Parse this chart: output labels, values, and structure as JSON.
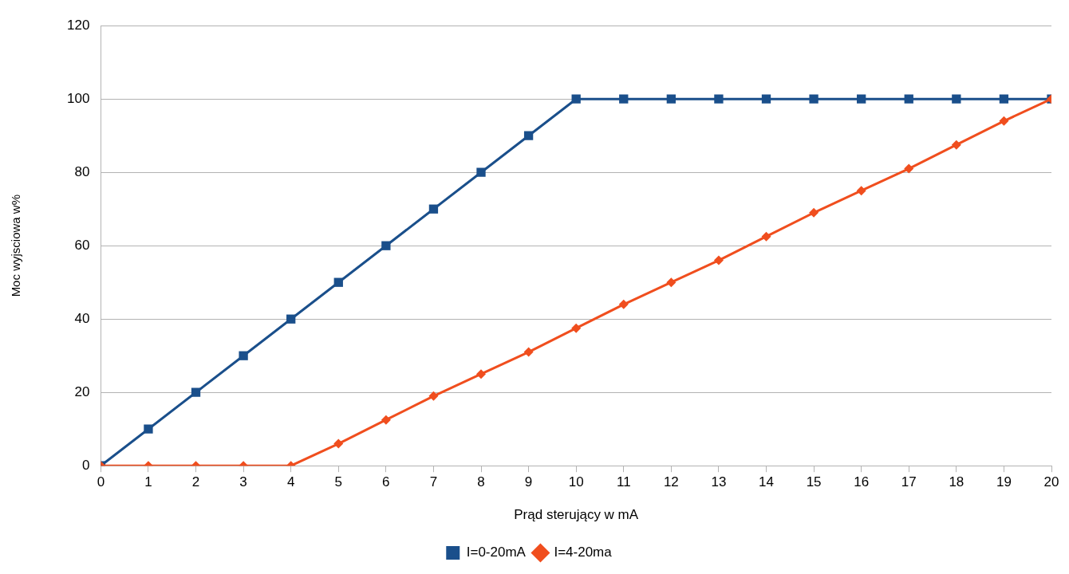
{
  "chart_data": {
    "type": "line",
    "xlabel": "Prąd sterujący w mA",
    "ylabel": "Moc wyjsciowa w%",
    "x": [
      0,
      1,
      2,
      3,
      4,
      5,
      6,
      7,
      8,
      9,
      10,
      11,
      12,
      13,
      14,
      15,
      16,
      17,
      18,
      19,
      20
    ],
    "series": [
      {
        "name": "I=0-20mA",
        "color": "#1a4f8b",
        "marker": "square",
        "values": [
          0,
          10,
          20,
          30,
          40,
          50,
          60,
          70,
          80,
          90,
          100,
          100,
          100,
          100,
          100,
          100,
          100,
          100,
          100,
          100,
          100
        ]
      },
      {
        "name": "I=4-20ma",
        "color": "#f04e1e",
        "marker": "diamond",
        "values": [
          0,
          0,
          0,
          0,
          0,
          6,
          12.5,
          19,
          25,
          31,
          37.5,
          44,
          50,
          56,
          62.5,
          69,
          75,
          81,
          87.5,
          94,
          100
        ]
      }
    ],
    "xlim": [
      0,
      20
    ],
    "xticks": [
      0,
      1,
      2,
      3,
      4,
      5,
      6,
      7,
      8,
      9,
      10,
      11,
      12,
      13,
      14,
      15,
      16,
      17,
      18,
      19,
      20
    ],
    "ylim": [
      0,
      120
    ],
    "yticks": [
      0,
      20,
      40,
      60,
      80,
      100,
      120
    ],
    "grid": "y",
    "legend": "bottom",
    "line_style": "solid"
  }
}
